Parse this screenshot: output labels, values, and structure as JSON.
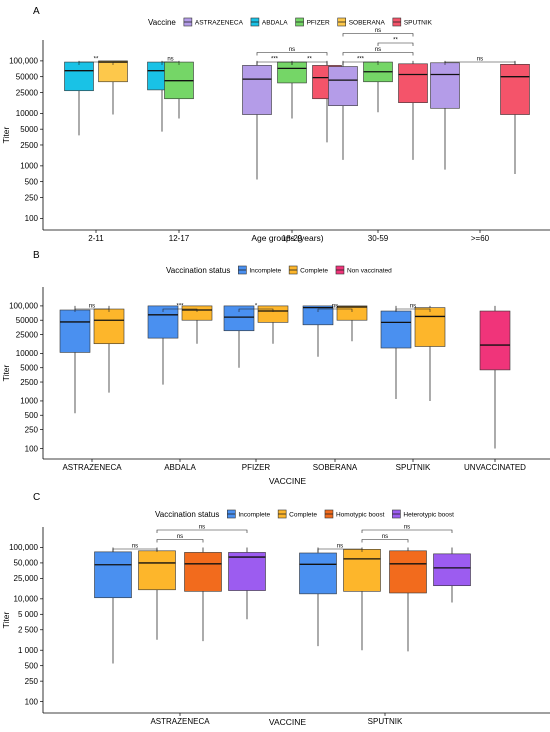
{
  "figure": {
    "width": 550,
    "height": 732
  },
  "chart_data": [
    {
      "panel": "A",
      "type": "box",
      "legend_title": "Vaccine",
      "legend_position": "top",
      "xlabel": "Age groups (years)",
      "ylabel": "Titer",
      "yscale": "log10",
      "ylim": [
        60,
        250000
      ],
      "yticks": [
        100,
        250,
        500,
        1000,
        2500,
        5000,
        10000,
        25000,
        50000,
        100000
      ],
      "ytick_labels": [
        "100",
        "250",
        "500",
        "1000",
        "2500",
        "5000",
        "10000",
        "25000",
        "50000",
        "100,000"
      ],
      "categories": [
        "2-11",
        "12-17",
        "18-29",
        "30-59",
        ">=60"
      ],
      "series": [
        {
          "name": "ASTRAZENECA",
          "color": "#b49ce8"
        },
        {
          "name": "ABDALA",
          "color": "#19c2e6"
        },
        {
          "name": "PFIZER",
          "color": "#75d667"
        },
        {
          "name": "SOBERANA",
          "color": "#fdc84b"
        },
        {
          "name": "SPUTNIK",
          "color": "#f4546a"
        }
      ],
      "boxes": [
        {
          "category": "2-11",
          "series": "ABDALA",
          "min": 3800,
          "q1": 27000,
          "median": 65000,
          "q3": 95000,
          "max": 100000
        },
        {
          "category": "2-11",
          "series": "SOBERANA",
          "min": 9500,
          "q1": 40000,
          "median": 95000,
          "q3": 100000,
          "max": 100000
        },
        {
          "category": "12-17",
          "series": "ABDALA",
          "min": 4500,
          "q1": 28000,
          "median": 65000,
          "q3": 95000,
          "max": 100000
        },
        {
          "category": "12-17",
          "series": "PFIZER",
          "min": 8000,
          "q1": 19000,
          "median": 42000,
          "q3": 95000,
          "max": 100000
        },
        {
          "category": "18-29",
          "series": "ASTRAZENECA",
          "min": 550,
          "q1": 9500,
          "median": 45000,
          "q3": 82000,
          "max": 100000
        },
        {
          "category": "18-29",
          "series": "PFIZER",
          "min": 8000,
          "q1": 38000,
          "median": 72000,
          "q3": 95000,
          "max": 100000
        },
        {
          "category": "18-29",
          "series": "SPUTNIK",
          "min": 2800,
          "q1": 19000,
          "median": 48000,
          "q3": 82000,
          "max": 100000
        },
        {
          "category": "30-59",
          "series": "ASTRAZENECA",
          "min": 1300,
          "q1": 14000,
          "median": 43000,
          "q3": 78000,
          "max": 100000
        },
        {
          "category": "30-59",
          "series": "PFIZER",
          "min": 10500,
          "q1": 40000,
          "median": 62000,
          "q3": 95000,
          "max": 100000
        },
        {
          "category": "30-59",
          "series": "SPUTNIK",
          "min": 1300,
          "q1": 16000,
          "median": 55000,
          "q3": 88000,
          "max": 100000
        },
        {
          "category": ">=60",
          "series": "ASTRAZENECA",
          "min": 850,
          "q1": 12500,
          "median": 55000,
          "q3": 92000,
          "max": 100000
        },
        {
          "category": ">=60",
          "series": "SPUTNIK",
          "min": 700,
          "q1": 9500,
          "median": 50000,
          "q3": 86000,
          "max": 100000
        }
      ],
      "comparisons": [
        {
          "category": "2-11",
          "from": "ABDALA",
          "to": "SOBERANA",
          "label": "**",
          "level": 0
        },
        {
          "category": "12-17",
          "from": "ABDALA",
          "to": "PFIZER",
          "label": "ns",
          "level": 0
        },
        {
          "category": "18-29",
          "from": "ASTRAZENECA",
          "to": "PFIZER",
          "label": "***",
          "level": 0
        },
        {
          "category": "18-29",
          "from": "PFIZER",
          "to": "SPUTNIK",
          "label": "**",
          "level": 0
        },
        {
          "category": "18-29",
          "from": "ASTRAZENECA",
          "to": "SPUTNIK",
          "label": "ns",
          "level": 1
        },
        {
          "category": "30-59",
          "from": "ASTRAZENECA",
          "to": "PFIZER",
          "label": "***",
          "level": 0
        },
        {
          "category": "30-59",
          "from": "ASTRAZENECA",
          "to": "SPUTNIK",
          "label": "ns",
          "level": 1
        },
        {
          "category": "30-59",
          "from": "PFIZER",
          "to": "SPUTNIK",
          "label": "**",
          "level": 2
        },
        {
          "category": "30-59",
          "from": "ASTRAZENECA",
          "to": "SPUTNIK",
          "label": "ns",
          "level": 3
        },
        {
          "category": ">=60",
          "from": "ASTRAZENECA",
          "to": "SPUTNIK",
          "label": "ns",
          "level": 0
        }
      ]
    },
    {
      "panel": "B",
      "type": "box",
      "legend_title": "Vaccination status",
      "legend_position": "top",
      "xlabel": "VACCINE",
      "ylabel": "Titer",
      "yscale": "log10",
      "ylim": [
        60,
        250000
      ],
      "yticks": [
        100,
        250,
        500,
        1000,
        2500,
        5000,
        10000,
        25000,
        50000,
        100000
      ],
      "ytick_labels": [
        "100",
        "250",
        "500",
        "1000",
        "2500",
        "5000",
        "10000",
        "25000",
        "50000",
        "100,000"
      ],
      "categories": [
        "ASTRAZENECA",
        "ABDALA",
        "PFIZER",
        "SOBERANA",
        "SPUTNIK",
        "UNVACCINATED"
      ],
      "series": [
        {
          "name": "Incomplete",
          "color": "#4a90f0"
        },
        {
          "name": "Complete",
          "color": "#fdb62b"
        },
        {
          "name": "Non vaccinated",
          "color": "#f0347a"
        }
      ],
      "boxes": [
        {
          "category": "ASTRAZENECA",
          "series": "Incomplete",
          "min": 550,
          "q1": 10500,
          "median": 46000,
          "q3": 82000,
          "max": 100000
        },
        {
          "category": "ASTRAZENECA",
          "series": "Complete",
          "min": 1500,
          "q1": 16000,
          "median": 50000,
          "q3": 86000,
          "max": 100000
        },
        {
          "category": "ABDALA",
          "series": "Incomplete",
          "min": 2200,
          "q1": 21000,
          "median": 65000,
          "q3": 100000,
          "max": 100000
        },
        {
          "category": "ABDALA",
          "series": "Complete",
          "min": 16000,
          "q1": 50000,
          "median": 82000,
          "q3": 100000,
          "max": 100000
        },
        {
          "category": "PFIZER",
          "series": "Incomplete",
          "min": 5000,
          "q1": 30000,
          "median": 58000,
          "q3": 100000,
          "max": 100000
        },
        {
          "category": "PFIZER",
          "series": "Complete",
          "min": 16000,
          "q1": 45000,
          "median": 78000,
          "q3": 100000,
          "max": 100000
        },
        {
          "category": "SOBERANA",
          "series": "Incomplete",
          "min": 8500,
          "q1": 40000,
          "median": 92000,
          "q3": 100000,
          "max": 100000
        },
        {
          "category": "SOBERANA",
          "series": "Complete",
          "min": 18000,
          "q1": 50000,
          "median": 95000,
          "q3": 100000,
          "max": 100000
        },
        {
          "category": "SPUTNIK",
          "series": "Incomplete",
          "min": 1100,
          "q1": 13000,
          "median": 45000,
          "q3": 78000,
          "max": 100000
        },
        {
          "category": "SPUTNIK",
          "series": "Complete",
          "min": 1000,
          "q1": 14000,
          "median": 60000,
          "q3": 92000,
          "max": 100000
        },
        {
          "category": "UNVACCINATED",
          "series": "Non vaccinated",
          "min": 100,
          "q1": 4500,
          "median": 15000,
          "q3": 78000,
          "max": 100000
        }
      ],
      "comparisons": [
        {
          "category": "ASTRAZENECA",
          "label": "ns"
        },
        {
          "category": "ABDALA",
          "label": "***"
        },
        {
          "category": "PFIZER",
          "label": "*"
        },
        {
          "category": "SOBERANA",
          "label": "ns"
        },
        {
          "category": "SPUTNIK",
          "label": "ns"
        }
      ]
    },
    {
      "panel": "C",
      "type": "box",
      "legend_title": "Vaccination status",
      "legend_position": "top",
      "xlabel": "VACCINE",
      "ylabel": "Titer",
      "yscale": "log10",
      "ylim": [
        60,
        250000
      ],
      "yticks": [
        100,
        250,
        500,
        1000,
        2500,
        5000,
        10000,
        25000,
        50000,
        100000
      ],
      "ytick_labels": [
        "100",
        "250",
        "500",
        "1 000",
        "2 500",
        "5 000",
        "10,000",
        "25,000",
        "50,000",
        "100,000"
      ],
      "categories": [
        "ASTRAZENECA",
        "SPUTNIK"
      ],
      "series": [
        {
          "name": "Incomplete",
          "color": "#4a90f0"
        },
        {
          "name": "Complete",
          "color": "#fdb62b"
        },
        {
          "name": "Homotypic boost",
          "color": "#f26b1d"
        },
        {
          "name": "Heterotypic boost",
          "color": "#9c5cf0"
        }
      ],
      "boxes": [
        {
          "category": "ASTRAZENECA",
          "series": "Incomplete",
          "min": 550,
          "q1": 10500,
          "median": 46000,
          "q3": 82000,
          "max": 100000
        },
        {
          "category": "ASTRAZENECA",
          "series": "Complete",
          "min": 1600,
          "q1": 15000,
          "median": 50000,
          "q3": 86000,
          "max": 100000
        },
        {
          "category": "ASTRAZENECA",
          "series": "Homotypic boost",
          "min": 1500,
          "q1": 14000,
          "median": 48000,
          "q3": 80000,
          "max": 100000
        },
        {
          "category": "ASTRAZENECA",
          "series": "Heterotypic boost",
          "min": 4000,
          "q1": 14500,
          "median": 65000,
          "q3": 80000,
          "max": 100000
        },
        {
          "category": "SPUTNIK",
          "series": "Incomplete",
          "min": 1200,
          "q1": 12500,
          "median": 47000,
          "q3": 78000,
          "max": 100000
        },
        {
          "category": "SPUTNIK",
          "series": "Complete",
          "min": 1000,
          "q1": 14000,
          "median": 60000,
          "q3": 92000,
          "max": 100000
        },
        {
          "category": "SPUTNIK",
          "series": "Homotypic boost",
          "min": 950,
          "q1": 13000,
          "median": 48000,
          "q3": 86000,
          "max": 100000
        },
        {
          "category": "SPUTNIK",
          "series": "Heterotypic boost",
          "min": 8500,
          "q1": 18000,
          "median": 40000,
          "q3": 75000,
          "max": 100000
        }
      ],
      "comparisons": [
        {
          "category": "ASTRAZENECA",
          "from": "Incomplete",
          "to": "Complete",
          "label": "ns",
          "level": 0
        },
        {
          "category": "ASTRAZENECA",
          "from": "Complete",
          "to": "Homotypic boost",
          "label": "ns",
          "level": 1
        },
        {
          "category": "ASTRAZENECA",
          "from": "Complete",
          "to": "Heterotypic boost",
          "label": "ns",
          "level": 2
        },
        {
          "category": "SPUTNIK",
          "from": "Incomplete",
          "to": "Complete",
          "label": "ns",
          "level": 0
        },
        {
          "category": "SPUTNIK",
          "from": "Complete",
          "to": "Homotypic boost",
          "label": "ns",
          "level": 1
        },
        {
          "category": "SPUTNIK",
          "from": "Complete",
          "to": "Heterotypic boost",
          "label": "ns",
          "level": 2
        }
      ]
    }
  ]
}
